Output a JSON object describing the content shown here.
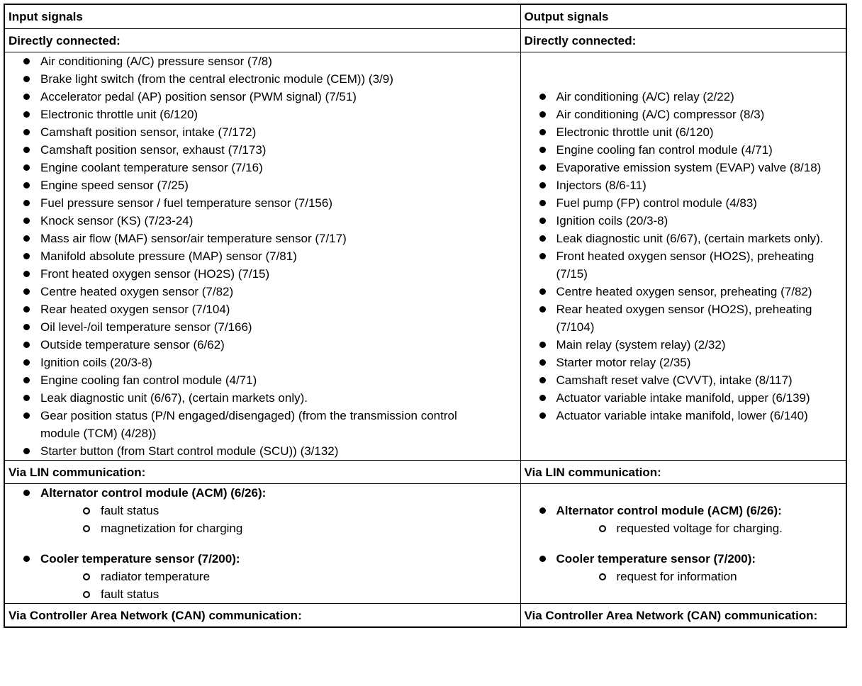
{
  "table": {
    "header": [
      "Input signals",
      "Output signals"
    ],
    "sections": [
      {
        "heading": [
          "Directly connected:",
          "Directly connected:"
        ],
        "columns": [
          [
            {
              "label": "Air conditioning (A/C) pressure sensor (7/8)"
            },
            {
              "label": "Brake light switch (from the central electronic module (CEM)) (3/9)"
            },
            {
              "label": "Accelerator pedal (AP) position sensor (PWM signal) (7/51)"
            },
            {
              "label": "Electronic throttle unit (6/120)"
            },
            {
              "label": "Camshaft position sensor, intake (7/172)"
            },
            {
              "label": "Camshaft position sensor, exhaust (7/173)"
            },
            {
              "label": "Engine coolant temperature sensor (7/16)"
            },
            {
              "label": "Engine speed sensor (7/25)"
            },
            {
              "label": "Fuel pressure sensor / fuel temperature sensor (7/156)"
            },
            {
              "label": "Knock sensor (KS) (7/23-24)"
            },
            {
              "label": "Mass air flow (MAF) sensor/air temperature sensor (7/17)"
            },
            {
              "label": "Manifold absolute pressure (MAP) sensor (7/81)"
            },
            {
              "label": "Front heated oxygen sensor (HO2S) (7/15)"
            },
            {
              "label": "Centre heated oxygen sensor (7/82)"
            },
            {
              "label": "Rear heated oxygen sensor (7/104)"
            },
            {
              "label": "Oil level-/oil temperature sensor (7/166)"
            },
            {
              "label": "Outside temperature sensor (6/62)"
            },
            {
              "label": "Ignition coils (20/3-8)"
            },
            {
              "label": "Engine cooling fan control module (4/71)"
            },
            {
              "label": "Leak diagnostic unit (6/67), (certain markets only)."
            },
            {
              "label": "Gear position status (P/N engaged/disengaged) (from the transmission control module (TCM) (4/28))"
            },
            {
              "label": "Starter button (from Start control module (SCU)) (3/132)"
            }
          ],
          [
            {
              "label": "Air conditioning (A/C) relay (2/22)"
            },
            {
              "label": "Air conditioning (A/C) compressor (8/3)"
            },
            {
              "label": "Electronic throttle unit (6/120)"
            },
            {
              "label": "Engine cooling fan control module (4/71)"
            },
            {
              "label": "Evaporative emission system (EVAP) valve (8/18)"
            },
            {
              "label": "Injectors (8/6-11)"
            },
            {
              "label": "Fuel pump (FP) control module (4/83)"
            },
            {
              "label": "Ignition coils (20/3-8)"
            },
            {
              "label": "Leak diagnostic unit (6/67), (certain markets only)."
            },
            {
              "label": "Front heated oxygen sensor (HO2S), preheating (7/15)"
            },
            {
              "label": "Centre heated oxygen sensor, preheating (7/82)"
            },
            {
              "label": "Rear heated oxygen sensor (HO2S), preheating (7/104)"
            },
            {
              "label": "Main relay (system relay) (2/32)"
            },
            {
              "label": "Starter motor relay (2/35)"
            },
            {
              "label": "Camshaft reset valve (CVVT), intake (8/117)"
            },
            {
              "label": "Actuator variable intake manifold, upper (6/139)"
            },
            {
              "label": "Actuator variable intake manifold, lower (6/140)"
            }
          ]
        ]
      },
      {
        "heading": [
          "Via LIN communication:",
          "Via LIN communication:"
        ],
        "columns": [
          [
            {
              "label": "Alternator control module (ACM) (6/26):",
              "sub": [
                "fault status",
                "magnetization for charging"
              ]
            },
            {
              "label": "Cooler temperature sensor (7/200):",
              "sub": [
                "radiator temperature",
                "fault status"
              ]
            }
          ],
          [
            {
              "label": "Alternator control module (ACM) (6/26):",
              "sub": [
                "requested voltage for charging."
              ]
            },
            {
              "label": "Cooler temperature sensor (7/200):",
              "sub": [
                "request for information"
              ]
            }
          ]
        ]
      },
      {
        "heading": [
          "Via Controller Area Network (CAN) communication:",
          "Via Controller Area Network (CAN) communication:"
        ]
      }
    ]
  }
}
